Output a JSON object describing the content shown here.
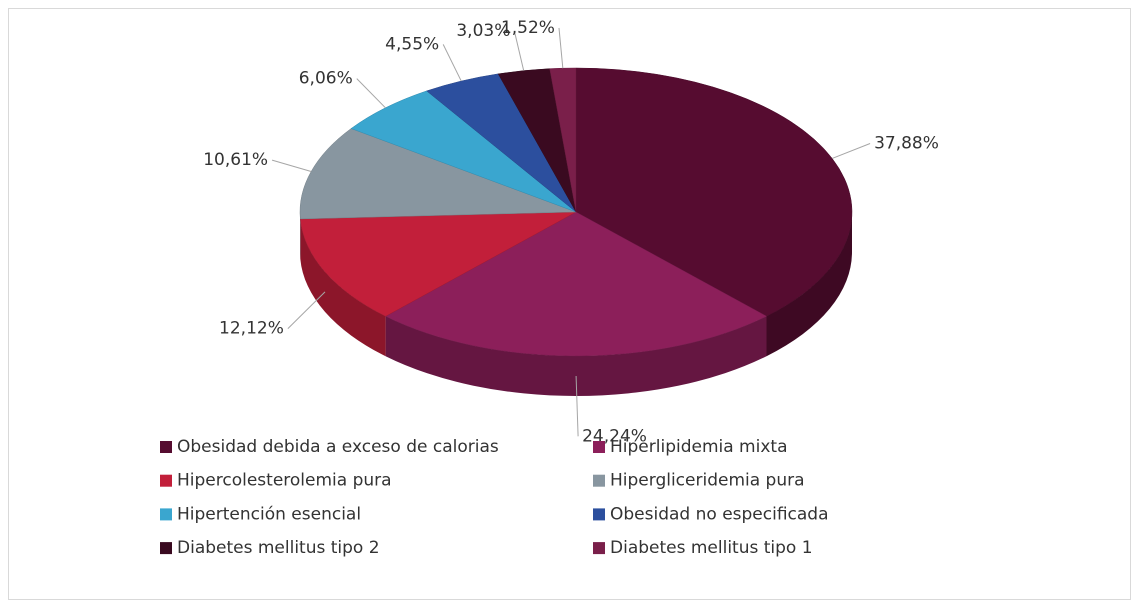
{
  "chart_data": {
    "type": "pie",
    "categories": [
      "Obesidad debida a exceso de calorias",
      "Hiperlipidemia mixta",
      "Hipercolesterolemia pura",
      "Hipergliceridemia pura",
      "Hipertención esencial",
      "Obesidad no especificada",
      "Diabetes mellitus tipo 2",
      "Diabetes mellitus tipo 1"
    ],
    "values": [
      37.88,
      24.24,
      12.12,
      10.61,
      6.06,
      4.55,
      3.03,
      1.52
    ],
    "value_labels": [
      "37,88%",
      "24,24%",
      "12,12%",
      "10,61%",
      "6,06%",
      "4,55%",
      "3,03%",
      "1,52%"
    ],
    "colors": [
      "#560c30",
      "#8c1f5a",
      "#c21f3a",
      "#8896a0",
      "#3aa6cf",
      "#2c4f9e",
      "#3a0a20",
      "#7a1f4a"
    ],
    "legend": "bottom"
  }
}
